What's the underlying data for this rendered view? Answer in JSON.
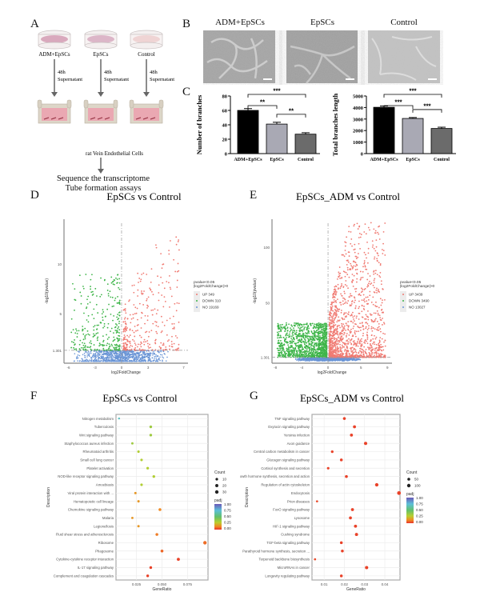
{
  "panels": {
    "A": {
      "label": "A",
      "groups": [
        {
          "name": "ADM+EpSCs",
          "dish_color": "#d9a9bd"
        },
        {
          "name": "EpSCs",
          "dish_color": "#dcb6c8"
        },
        {
          "name": "Control",
          "dish_color": "#efd4d4"
        }
      ],
      "arrow_time": "48h",
      "arrow_label": "Supernatant",
      "cells_label": "rat Vein Endothelial Cells",
      "outcome_lines": [
        "Sequence the transcriptome",
        "Tube formation assays"
      ]
    },
    "B": {
      "label": "B",
      "images": [
        {
          "title": "ADM+EpSCs"
        },
        {
          "title": "EpSCs"
        },
        {
          "title": "Control"
        }
      ]
    },
    "C": {
      "label": "C"
    },
    "D": {
      "label": "D"
    },
    "E": {
      "label": "E"
    },
    "F": {
      "label": "F"
    },
    "G": {
      "label": "G"
    }
  },
  "chart_data": [
    {
      "id": "C-left",
      "type": "bar",
      "categories": [
        "ADM+EpSCs",
        "EpSCs",
        "Control"
      ],
      "values": [
        60,
        41,
        27
      ],
      "errors": [
        2.5,
        2.5,
        2
      ],
      "colors": [
        "#000000",
        "#a9a9b4",
        "#6b6b6b"
      ],
      "ylabel": "Number of branches",
      "ylim": [
        0,
        80
      ],
      "yticks": [
        0,
        20,
        40,
        60,
        80
      ],
      "significance": [
        {
          "from": 0,
          "to": 1,
          "label": "**"
        },
        {
          "from": 0,
          "to": 2,
          "label": "***"
        },
        {
          "from": 1,
          "to": 2,
          "label": "**"
        }
      ]
    },
    {
      "id": "C-right",
      "type": "bar",
      "categories": [
        "ADM+EpSCs",
        "EpSCs",
        "Control"
      ],
      "values": [
        4020,
        3050,
        2180
      ],
      "errors": [
        110,
        80,
        110
      ],
      "colors": [
        "#000000",
        "#a9a9b4",
        "#6b6b6b"
      ],
      "ylabel": "Total branches length",
      "ylim": [
        0,
        5000
      ],
      "yticks": [
        0,
        1000,
        2000,
        3000,
        4000,
        5000
      ],
      "significance": [
        {
          "from": 0,
          "to": 1,
          "label": "***"
        },
        {
          "from": 0,
          "to": 2,
          "label": "***"
        },
        {
          "from": 1,
          "to": 2,
          "label": "***"
        }
      ]
    },
    {
      "id": "D",
      "type": "scatter",
      "title": "EpSCs vs Control",
      "xlabel": "log2FoldChange",
      "ylabel": "-log10(pvalue)",
      "xlim": [
        -6.5,
        7.5
      ],
      "ylim": [
        0,
        14.5
      ],
      "xticks": [
        -6,
        -3,
        0,
        3,
        7
      ],
      "yticks": [
        {
          "v": 1.301,
          "label": "1.301"
        },
        {
          "v": 5,
          "label": "5"
        },
        {
          "v": 10,
          "label": "10"
        }
      ],
      "threshold_y": 1.301,
      "legend_title": [
        "pvalue<0.05",
        "|log2FoldChange|>0"
      ],
      "legend": [
        {
          "label": "UP 349",
          "color": "#f07a72"
        },
        {
          "label": "DOWN 310",
          "color": "#3fb54a"
        },
        {
          "label": "NO 19169",
          "color": "#6a95d6"
        }
      ],
      "spread": {
        "up_max": 13,
        "down_max": 9,
        "base_width": 5.5
      }
    },
    {
      "id": "E",
      "type": "scatter",
      "title": "EpSCs_ADM vs Control",
      "xlabel": "log2FoldChange",
      "ylabel": "-log10(pvalue)",
      "xlim": [
        -8.5,
        9.7
      ],
      "ylim": [
        -4,
        125
      ],
      "xticks": [
        -8,
        -4,
        0,
        5,
        9
      ],
      "yticks": [
        {
          "v": 1.301,
          "label": "1.301"
        },
        {
          "v": 50,
          "label": "50"
        },
        {
          "v": 100,
          "label": "100"
        }
      ],
      "threshold_y": 1.301,
      "legend_title": [
        "pvalue<0.05",
        "|log2FoldChange|>0"
      ],
      "legend": [
        {
          "label": "UP 3439",
          "color": "#f07a72"
        },
        {
          "label": "DOWN 3490",
          "color": "#3fb54a"
        },
        {
          "label": "NO 13027",
          "color": "#6a95d6"
        }
      ],
      "spread": {
        "up_max": 122,
        "down_max": 32,
        "base_width": 5
      }
    },
    {
      "id": "F",
      "type": "scatter",
      "title": "EpSCs vs Control",
      "xlabel": "GeneRatio",
      "ylabel": "Description",
      "xlim": [
        0.005,
        0.095
      ],
      "xticks": [
        {
          "v": 0.025,
          "label": "0.025"
        },
        {
          "v": 0.05,
          "label": "0.050"
        },
        {
          "v": 0.075,
          "label": "0.075"
        }
      ],
      "categories": [
        "Nitrogen metabolism",
        "Tuberculosis",
        "Wnt signaling pathway",
        "Staphylococcus aureus infection",
        "Rheumatoid arthritis",
        "Small cell lung cancer",
        "Platelet activation",
        "NOD-like receptor signaling pathway",
        "Amoebiasis",
        "Viral protein interaction with ...",
        "Hematopoietic cell lineage",
        "Chemokine signaling pathway",
        "Malaria",
        "Legionellosis",
        "Fluid shear stress and atherosclerosis",
        "Ribosome",
        "Phagosome",
        "Cytokine-cytokine receptor interaction",
        "IL-17 signaling pathway",
        "Complement and coagulation cascades"
      ],
      "gene_ratio": [
        0.008,
        0.039,
        0.039,
        0.021,
        0.027,
        0.03,
        0.036,
        0.042,
        0.03,
        0.024,
        0.027,
        0.048,
        0.021,
        0.027,
        0.045,
        0.092,
        0.05,
        0.066,
        0.039,
        0.036
      ],
      "count": [
        3,
        12,
        12,
        6,
        8,
        9,
        10,
        12,
        9,
        7,
        8,
        14,
        6,
        8,
        13,
        28,
        15,
        19,
        12,
        11
      ],
      "padj": [
        0.7,
        0.35,
        0.35,
        0.35,
        0.3,
        0.3,
        0.3,
        0.3,
        0.3,
        0.15,
        0.15,
        0.12,
        0.15,
        0.15,
        0.1,
        0.08,
        0.07,
        0.02,
        0.02,
        0.02
      ],
      "legend_size_title": "Count",
      "legend_sizes": [
        10,
        20,
        30
      ],
      "legend_color_title": "padj",
      "legend_color_ticks": [
        "1.00",
        "0.75",
        "0.50",
        "0.25",
        "0.00"
      ]
    },
    {
      "id": "G",
      "type": "scatter",
      "title": "EpSCs_ADM vs Control",
      "xlabel": "GeneRatio",
      "ylabel": "Description",
      "xlim": [
        0.004,
        0.0475
      ],
      "xticks": [
        {
          "v": 0.01,
          "label": "0.01"
        },
        {
          "v": 0.02,
          "label": "0.02"
        },
        {
          "v": 0.03,
          "label": "0.03"
        },
        {
          "v": 0.04,
          "label": "0.04"
        }
      ],
      "categories": [
        "TNF signaling pathway",
        "Oxytocin signaling pathway",
        "Yersinia infection",
        "Axon guidance",
        "Central carbon metabolism in cancer",
        "Glucagon signaling pathway",
        "Cortisol synthesis and secretion",
        "Growth hormone synthesis, secretion and action",
        "Regulation of actin cytoskeleton",
        "Endocytosis",
        "Prion diseases",
        "FoxO signaling pathway",
        "Lysosome",
        "HIF-1 signaling pathway",
        "Cushing syndrome",
        "TGF-beta signaling pathway",
        "Parathyroid hormone synthesis, secretion ...",
        "Terpenoid backbone biosynthesis",
        "MicroRNAs in cancer",
        "Longevity regulating pathway"
      ],
      "gene_ratio": [
        0.02,
        0.025,
        0.0235,
        0.0305,
        0.014,
        0.0185,
        0.012,
        0.021,
        0.036,
        0.047,
        0.0065,
        0.024,
        0.023,
        0.0255,
        0.026,
        0.0185,
        0.019,
        0.0055,
        0.031,
        0.0185
      ],
      "count": [
        50,
        60,
        58,
        75,
        35,
        46,
        30,
        52,
        90,
        118,
        16,
        59,
        57,
        63,
        65,
        46,
        47,
        14,
        78,
        46
      ],
      "padj": [
        0.02,
        0.02,
        0.02,
        0.02,
        0.02,
        0.02,
        0.02,
        0.02,
        0.02,
        0.02,
        0.03,
        0.02,
        0.02,
        0.02,
        0.02,
        0.02,
        0.02,
        0.03,
        0.02,
        0.02
      ],
      "legend_size_title": "Count",
      "legend_sizes": [
        50,
        100
      ],
      "legend_color_title": "padj",
      "legend_color_ticks": [
        "1.00",
        "0.75",
        "0.50",
        "0.25",
        "0.00"
      ]
    }
  ]
}
